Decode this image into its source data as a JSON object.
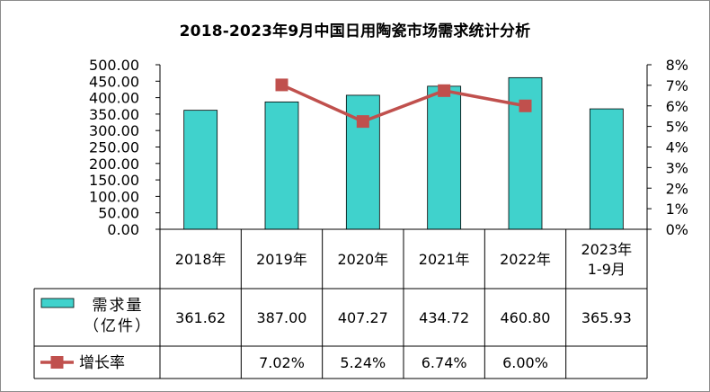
{
  "chart_data": {
    "type": "bar",
    "title": "2018-2023年9月中国日用陶瓷市场需求统计分析",
    "categories": [
      "2018年",
      "2019年",
      "2020年",
      "2021年",
      "2022年",
      "2023年\n1-9月"
    ],
    "series": [
      {
        "name": "需求量（亿件）",
        "type": "bar",
        "axis": "left",
        "color": "#40d2cc",
        "values": [
          361.62,
          387.0,
          407.27,
          434.72,
          460.8,
          365.93
        ],
        "labels": [
          "361.62",
          "387.00",
          "407.27",
          "434.72",
          "460.80",
          "365.93"
        ]
      },
      {
        "name": "增长率",
        "type": "line",
        "axis": "right",
        "color": "#c0504d",
        "values": [
          null,
          7.02,
          5.24,
          6.74,
          6.0,
          null
        ],
        "labels": [
          "",
          "7.02%",
          "5.24%",
          "6.74%",
          "6.00%",
          ""
        ]
      }
    ],
    "y_left": {
      "min": 0,
      "max": 500,
      "step": 50,
      "tick_labels": [
        "0.00",
        "50.00",
        "100.00",
        "150.00",
        "200.00",
        "250.00",
        "300.00",
        "350.00",
        "400.00",
        "450.00",
        "500.00"
      ]
    },
    "y_right": {
      "min": 0,
      "max": 8,
      "step": 1,
      "tick_labels": [
        "0%",
        "1%",
        "2%",
        "3%",
        "4%",
        "5%",
        "6%",
        "7%",
        "8%"
      ]
    },
    "legend_placement": "data-table",
    "grid": false
  }
}
